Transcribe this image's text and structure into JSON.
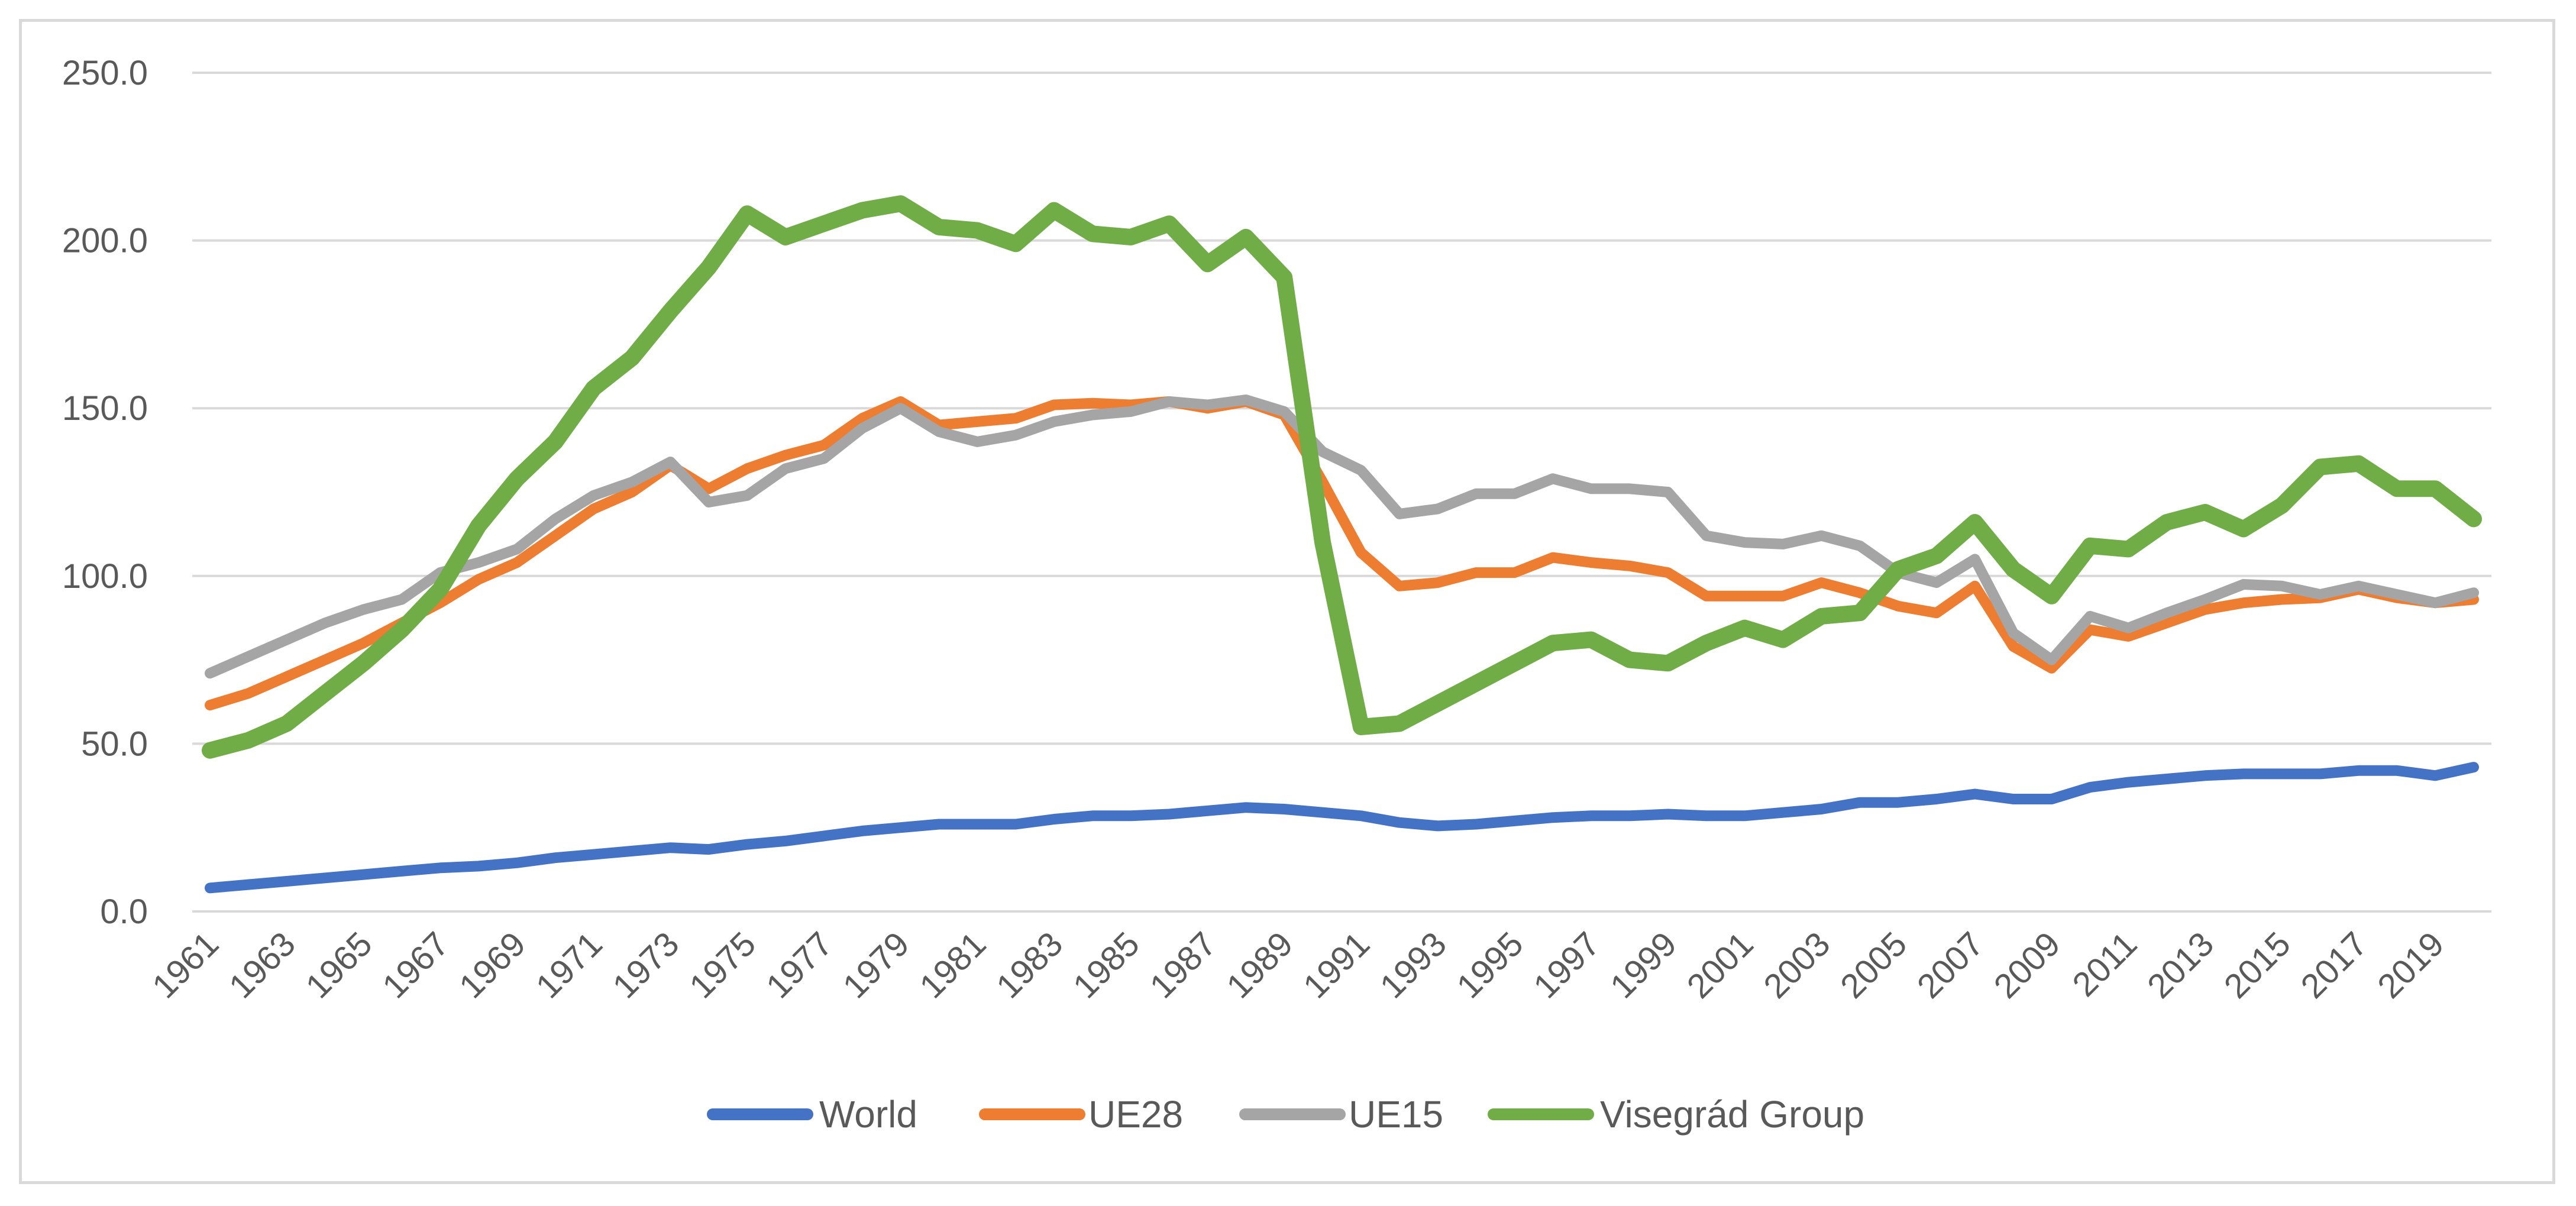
{
  "chart_data": {
    "type": "line",
    "title": "",
    "xlabel": "",
    "ylabel": "",
    "ylim": [
      0,
      250
    ],
    "yticks": [
      "0.0",
      "50.0",
      "100.0",
      "150.0",
      "200.0",
      "250.0"
    ],
    "x_tick_labels": [
      "1961",
      "1963",
      "1965",
      "1967",
      "1969",
      "1971",
      "1973",
      "1975",
      "1977",
      "1979",
      "1981",
      "1983",
      "1985",
      "1987",
      "1989",
      "1991",
      "1993",
      "1995",
      "1997",
      "1999",
      "2001",
      "2003",
      "2005",
      "2007",
      "2009",
      "2011",
      "2013",
      "2015",
      "2017",
      "2019"
    ],
    "grid": true,
    "legend_position": "bottom",
    "x": [
      1961,
      1962,
      1963,
      1964,
      1965,
      1966,
      1967,
      1968,
      1969,
      1970,
      1971,
      1972,
      1973,
      1974,
      1975,
      1976,
      1977,
      1978,
      1979,
      1980,
      1981,
      1982,
      1983,
      1984,
      1985,
      1986,
      1987,
      1988,
      1989,
      1990,
      1991,
      1992,
      1993,
      1994,
      1995,
      1996,
      1997,
      1998,
      1999,
      2000,
      2001,
      2002,
      2003,
      2004,
      2005,
      2006,
      2007,
      2008,
      2009,
      2010,
      2011,
      2012,
      2013,
      2014,
      2015,
      2016,
      2017,
      2018,
      2019,
      2020
    ],
    "series": [
      {
        "name": "World",
        "color": "#4472c4",
        "values": [
          7.0,
          8.0,
          9.0,
          10.0,
          11.0,
          12.0,
          13.0,
          13.5,
          14.5,
          16.0,
          17.0,
          18.0,
          19.0,
          18.5,
          20.0,
          21.0,
          22.5,
          24.0,
          25.0,
          26.0,
          26.0,
          26.0,
          27.5,
          28.5,
          28.5,
          29.0,
          30.0,
          31.0,
          30.5,
          29.5,
          28.5,
          26.5,
          25.5,
          26.0,
          27.0,
          28.0,
          28.5,
          28.5,
          29.0,
          28.5,
          28.5,
          29.5,
          30.5,
          32.5,
          32.5,
          33.5,
          35.0,
          33.5,
          33.5,
          37.0,
          38.5,
          39.5,
          40.5,
          41.0,
          41.0,
          41.0,
          42.0,
          42.0,
          40.5,
          43.0
        ]
      },
      {
        "name": "UE28",
        "color": "#ed7d31",
        "values": [
          61.5,
          65.0,
          70.0,
          75.0,
          80.0,
          86.0,
          92.0,
          99.0,
          104.0,
          112.0,
          120.0,
          125.0,
          133.0,
          126.0,
          132.0,
          136.0,
          139.0,
          147.0,
          152.0,
          145.0,
          146.0,
          147.0,
          151.0,
          151.5,
          151.0,
          152.0,
          150.0,
          152.0,
          148.0,
          128.0,
          107.0,
          97.0,
          98.0,
          101.0,
          101.0,
          105.5,
          104.0,
          103.0,
          101.0,
          94.0,
          94.0,
          94.0,
          98.0,
          95.0,
          91.0,
          89.0,
          97.0,
          79.0,
          72.5,
          84.0,
          82.0,
          86.0,
          90.0,
          92.0,
          93.0,
          93.5,
          96.0,
          93.5,
          92.0,
          93.0
        ]
      },
      {
        "name": "UE15",
        "color": "#a5a5a5",
        "values": [
          71.0,
          76.0,
          81.0,
          86.0,
          90.0,
          93.0,
          101.0,
          104.0,
          108.0,
          117.0,
          124.0,
          128.0,
          134.0,
          122.0,
          124.0,
          132.0,
          135.0,
          144.0,
          150.0,
          143.0,
          140.0,
          142.0,
          146.0,
          148.0,
          149.0,
          152.0,
          151.0,
          152.5,
          149.0,
          137.0,
          131.5,
          118.5,
          120.0,
          124.5,
          124.5,
          129.0,
          126.0,
          126.0,
          125.0,
          112.0,
          110.0,
          109.5,
          112.0,
          109.0,
          101.0,
          98.0,
          105.0,
          83.0,
          75.0,
          88.0,
          84.5,
          89.0,
          93.0,
          97.5,
          97.0,
          94.5,
          97.0,
          94.5,
          92.0,
          95.0
        ]
      },
      {
        "name": "Visegrád Group",
        "color": "#70ad47",
        "values": [
          48.0,
          51.0,
          56.0,
          65.0,
          74.0,
          84.0,
          96.0,
          115.0,
          129.0,
          140.0,
          156.0,
          165.0,
          179.0,
          192.0,
          208.0,
          201.0,
          205.0,
          209.0,
          211.0,
          204.0,
          203.0,
          199.0,
          209.0,
          202.0,
          201.0,
          205.0,
          193.0,
          201.0,
          189.0,
          110.0,
          55.0,
          56.0,
          62.0,
          68.0,
          74.0,
          80.0,
          81.0,
          75.0,
          74.0,
          80.0,
          84.5,
          81.0,
          88.0,
          89.0,
          102.0,
          106.0,
          116.0,
          102.0,
          94.0,
          109.0,
          108.0,
          116.0,
          119.0,
          114.0,
          121.0,
          132.5,
          133.5,
          126.0,
          126.0,
          117.0
        ]
      }
    ]
  }
}
